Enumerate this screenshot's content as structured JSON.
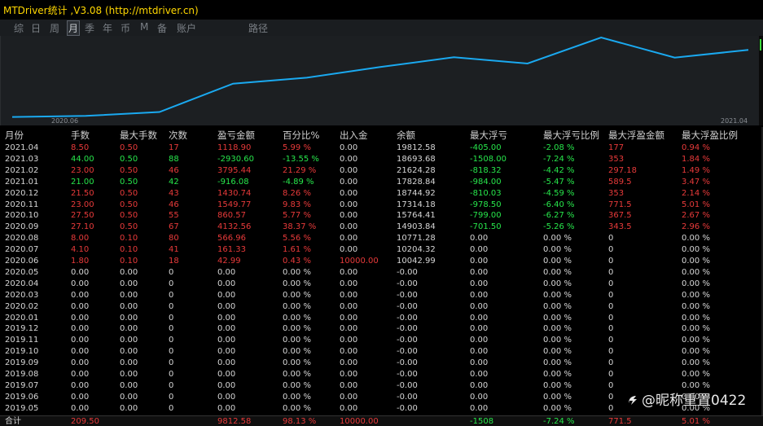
{
  "window": {
    "title": "MTDriver统计 ,V3.08 (http://mtdriver.cn)"
  },
  "tabs": [
    {
      "label": "综",
      "active": false
    },
    {
      "label": "日",
      "active": false
    },
    {
      "label": "周",
      "active": false
    },
    {
      "label": "月",
      "active": true
    },
    {
      "label": "季",
      "active": false
    },
    {
      "label": "年",
      "active": false
    },
    {
      "label": "币",
      "active": false
    },
    {
      "label": "M",
      "active": false
    },
    {
      "label": "备",
      "active": false
    },
    {
      "label": "账户",
      "active": false
    },
    {
      "label": "路径",
      "active": false
    }
  ],
  "chart_data": {
    "type": "line",
    "x_labels": [
      "2020.06",
      "2021.04"
    ],
    "series": [
      {
        "color": "#1aa9f0",
        "x": [
          "2020.06",
          "2020.07",
          "2020.08",
          "2020.09",
          "2020.10",
          "2020.11",
          "2020.12",
          "2021.01",
          "2021.02",
          "2021.03",
          "2021.04"
        ],
        "values": [
          10042.99,
          10204.32,
          10771.28,
          14903.84,
          15764.41,
          17314.18,
          18744.92,
          17828.84,
          21624.28,
          18693.68,
          19812.58
        ]
      }
    ]
  },
  "table": {
    "headers": [
      "月份",
      "手数",
      "最大手数",
      "次数",
      "盈亏金额",
      "百分比%",
      "出入金",
      "余额",
      "最大浮亏",
      "最大浮亏比例",
      "最大浮盈金额",
      "最大浮盈比例"
    ],
    "rows": [
      [
        "2021.04",
        "8.50",
        "0.50",
        "17",
        "1118.90",
        "5.99 %",
        "0.00",
        "19812.58",
        "-405.00",
        "-2.08 %",
        "177",
        "0.94 %"
      ],
      [
        "2021.03",
        "44.00",
        "0.50",
        "88",
        "-2930.60",
        "-13.55 %",
        "0.00",
        "18693.68",
        "-1508.00",
        "-7.24 %",
        "353",
        "1.84 %"
      ],
      [
        "2021.02",
        "23.00",
        "0.50",
        "46",
        "3795.44",
        "21.29 %",
        "0.00",
        "21624.28",
        "-818.32",
        "-4.42 %",
        "297.18",
        "1.49 %"
      ],
      [
        "2021.01",
        "21.00",
        "0.50",
        "42",
        "-916.08",
        "-4.89 %",
        "0.00",
        "17828.84",
        "-984.00",
        "-5.47 %",
        "589.5",
        "3.47 %"
      ],
      [
        "2020.12",
        "21.50",
        "0.50",
        "43",
        "1430.74",
        "8.26 %",
        "0.00",
        "18744.92",
        "-810.03",
        "-4.59 %",
        "353",
        "2.14 %"
      ],
      [
        "2020.11",
        "23.00",
        "0.50",
        "46",
        "1549.77",
        "9.83 %",
        "0.00",
        "17314.18",
        "-978.50",
        "-6.40 %",
        "771.5",
        "5.01 %"
      ],
      [
        "2020.10",
        "27.50",
        "0.50",
        "55",
        "860.57",
        "5.77 %",
        "0.00",
        "15764.41",
        "-799.00",
        "-6.27 %",
        "367.5",
        "2.67 %"
      ],
      [
        "2020.09",
        "27.10",
        "0.50",
        "67",
        "4132.56",
        "38.37 %",
        "0.00",
        "14903.84",
        "-701.50",
        "-5.26 %",
        "343.5",
        "2.96 %"
      ],
      [
        "2020.08",
        "8.00",
        "0.10",
        "80",
        "566.96",
        "5.56 %",
        "0.00",
        "10771.28",
        "0.00",
        "0.00 %",
        "0",
        "0.00 %"
      ],
      [
        "2020.07",
        "4.10",
        "0.10",
        "41",
        "161.33",
        "1.61 %",
        "0.00",
        "10204.32",
        "0.00",
        "0.00 %",
        "0",
        "0.00 %"
      ],
      [
        "2020.06",
        "1.80",
        "0.10",
        "18",
        "42.99",
        "0.43 %",
        "10000.00",
        "10042.99",
        "0.00",
        "0.00 %",
        "0",
        "0.00 %"
      ],
      [
        "2020.05",
        "0.00",
        "0.00",
        "0",
        "0.00",
        "0.00 %",
        "0.00",
        "-0.00",
        "0.00",
        "0.00 %",
        "0",
        "0.00 %"
      ],
      [
        "2020.04",
        "0.00",
        "0.00",
        "0",
        "0.00",
        "0.00 %",
        "0.00",
        "-0.00",
        "0.00",
        "0.00 %",
        "0",
        "0.00 %"
      ],
      [
        "2020.03",
        "0.00",
        "0.00",
        "0",
        "0.00",
        "0.00 %",
        "0.00",
        "-0.00",
        "0.00",
        "0.00 %",
        "0",
        "0.00 %"
      ],
      [
        "2020.02",
        "0.00",
        "0.00",
        "0",
        "0.00",
        "0.00 %",
        "0.00",
        "-0.00",
        "0.00",
        "0.00 %",
        "0",
        "0.00 %"
      ],
      [
        "2020.01",
        "0.00",
        "0.00",
        "0",
        "0.00",
        "0.00 %",
        "0.00",
        "-0.00",
        "0.00",
        "0.00 %",
        "0",
        "0.00 %"
      ],
      [
        "2019.12",
        "0.00",
        "0.00",
        "0",
        "0.00",
        "0.00 %",
        "0.00",
        "-0.00",
        "0.00",
        "0.00 %",
        "0",
        "0.00 %"
      ],
      [
        "2019.11",
        "0.00",
        "0.00",
        "0",
        "0.00",
        "0.00 %",
        "0.00",
        "-0.00",
        "0.00",
        "0.00 %",
        "0",
        "0.00 %"
      ],
      [
        "2019.10",
        "0.00",
        "0.00",
        "0",
        "0.00",
        "0.00 %",
        "0.00",
        "-0.00",
        "0.00",
        "0.00 %",
        "0",
        "0.00 %"
      ],
      [
        "2019.09",
        "0.00",
        "0.00",
        "0",
        "0.00",
        "0.00 %",
        "0.00",
        "-0.00",
        "0.00",
        "0.00 %",
        "0",
        "0.00 %"
      ],
      [
        "2019.08",
        "0.00",
        "0.00",
        "0",
        "0.00",
        "0.00 %",
        "0.00",
        "-0.00",
        "0.00",
        "0.00 %",
        "0",
        "0.00 %"
      ],
      [
        "2019.07",
        "0.00",
        "0.00",
        "0",
        "0.00",
        "0.00 %",
        "0.00",
        "-0.00",
        "0.00",
        "0.00 %",
        "0",
        "0.00 %"
      ],
      [
        "2019.06",
        "0.00",
        "0.00",
        "0",
        "0.00",
        "0.00 %",
        "0.00",
        "-0.00",
        "0.00",
        "0.00 %",
        "0",
        "0.00 %"
      ],
      [
        "2019.05",
        "0.00",
        "0.00",
        "0",
        "0.00",
        "0.00 %",
        "0.00",
        "-0.00",
        "0.00",
        "0.00 %",
        "0",
        "0.00 %"
      ]
    ],
    "row_colors": [
      "red",
      "green",
      "red",
      "green",
      "red",
      "red",
      "red",
      "red",
      "red",
      "red",
      "red",
      "white",
      "white",
      "white",
      "white",
      "white",
      "white",
      "white",
      "white",
      "white",
      "white",
      "white",
      "white",
      "white"
    ],
    "totals": [
      "合计",
      "209.50",
      "",
      "",
      "9812.58",
      "98.13 %",
      "10000.00",
      "",
      "-1508",
      "-7.24 %",
      "771.5",
      "5.01 %"
    ]
  },
  "watermark": {
    "text": "@昵称重置0422"
  },
  "colors": {
    "profit": "#e83a3a",
    "loss": "#27e64b",
    "neutral": "#d6d6d6",
    "line": "#1aa9f0",
    "title": "#ffd700"
  }
}
